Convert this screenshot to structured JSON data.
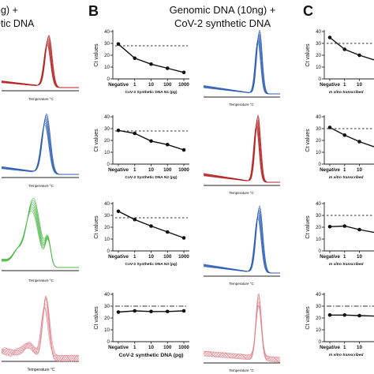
{
  "header": {
    "panel_a_title_lines": [
      "ng) +",
      "etic DNA"
    ],
    "panel_b_letter": "B",
    "panel_b_title_lines": [
      "Genomic DNA (10ng) +",
      "CoV-2 synthetic DNA"
    ],
    "panel_c_letter": "C"
  },
  "melt_axis_labels": {
    "row1": "Temperature °C",
    "row2": "Temperature °C",
    "row3": "Temperature °C",
    "row4": "Temperature °C"
  },
  "melt_colors": {
    "red": "#b52323",
    "blue": "#2f5fb4",
    "green": "#4fb848",
    "pink": "#e08a94"
  },
  "chart_data": [
    {
      "type": "line",
      "panel": "B-1",
      "categories": [
        "Negative",
        "1",
        "10",
        "100",
        "1000"
      ],
      "series": [
        {
          "values": [
            29.5,
            17.5,
            12.5,
            9.0,
            5.5
          ]
        }
      ],
      "threshold": 28,
      "ylabel": "Ct values",
      "xlabel": "CoV-2 Synthetic DNA N1 (pg)",
      "ylim": [
        0,
        40
      ],
      "yticks": [
        "0",
        "10",
        "20",
        "30",
        "40"
      ]
    },
    {
      "type": "line",
      "panel": "B-2",
      "categories": [
        "Negative",
        "1",
        "10",
        "100",
        "1000"
      ],
      "series": [
        {
          "values": [
            28.5,
            26.0,
            19.5,
            16.5,
            12.0
          ]
        }
      ],
      "threshold": 28,
      "ylabel": "Ct values",
      "xlabel": "CoV-2 Synthetic DNA N2 (pg)",
      "ylim": [
        0,
        40
      ],
      "yticks": [
        "0",
        "10",
        "20",
        "30",
        "40"
      ]
    },
    {
      "type": "line",
      "panel": "B-3",
      "categories": [
        "Negative",
        "1",
        "10",
        "100",
        "1000"
      ],
      "series": [
        {
          "values": [
            33.5,
            26.5,
            21.0,
            16.0,
            11.0
          ]
        }
      ],
      "threshold": 28,
      "ylabel": "Ct values",
      "xlabel": "CoV-2 Synthetic DNA N3 (pg)",
      "ylim": [
        0,
        40
      ],
      "yticks": [
        "0",
        "10",
        "20",
        "30",
        "40"
      ]
    },
    {
      "type": "line",
      "panel": "B-4",
      "categories": [
        "Negative",
        "1",
        "10",
        "100",
        "1000"
      ],
      "series": [
        {
          "values": [
            25.0,
            26.0,
            25.5,
            25.5,
            26.0
          ]
        }
      ],
      "threshold": 30,
      "ylabel": "Ct values",
      "xlabel": "CoV-2 synthetic DNA (pg)",
      "ylim": [
        0,
        40
      ],
      "yticks": [
        "0",
        "10",
        "20",
        "30",
        "40"
      ]
    },
    {
      "type": "line",
      "panel": "C-1",
      "categories": [
        "Negative",
        "1",
        "10"
      ],
      "series": [
        {
          "values": [
            35.0,
            25.0,
            20.0
          ]
        }
      ],
      "threshold": 30,
      "ylabel": "Ct values",
      "xlabel": "In vitro transcribed",
      "ylim": [
        0,
        40
      ],
      "yticks": [
        "0",
        "10",
        "20",
        "30",
        "40"
      ]
    },
    {
      "type": "line",
      "panel": "C-2",
      "categories": [
        "Negative",
        "1",
        "10"
      ],
      "series": [
        {
          "values": [
            31.0,
            24.5,
            19.0
          ]
        }
      ],
      "threshold": 30,
      "ylabel": "Ct values",
      "xlabel": "In vitro transcribed",
      "ylim": [
        0,
        40
      ],
      "yticks": [
        "0",
        "10",
        "20",
        "30",
        "40"
      ]
    },
    {
      "type": "line",
      "panel": "C-3",
      "categories": [
        "Negative",
        "1",
        "10"
      ],
      "series": [
        {
          "values": [
            20.5,
            21.0,
            18.0
          ]
        }
      ],
      "threshold": 30,
      "ylabel": "Ct values",
      "xlabel": "In vitro transcribed",
      "ylim": [
        0,
        40
      ],
      "yticks": [
        "0",
        "10",
        "20",
        "30",
        "40"
      ]
    },
    {
      "type": "line",
      "panel": "C-4",
      "categories": [
        "Negative",
        "1",
        "10"
      ],
      "series": [
        {
          "values": [
            22.5,
            22.5,
            22.0
          ]
        }
      ],
      "threshold": 30,
      "ylabel": "Ct values",
      "xlabel": "In vitro transcribed",
      "ylim": [
        0,
        40
      ],
      "yticks": [
        "0",
        "10",
        "20",
        "30",
        "40"
      ]
    }
  ]
}
